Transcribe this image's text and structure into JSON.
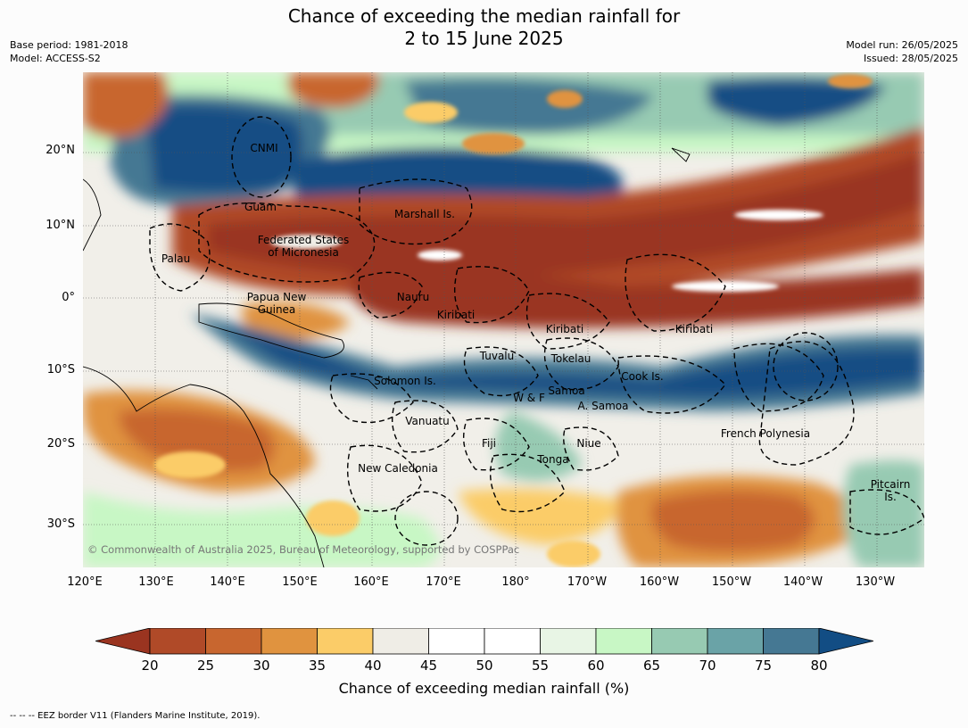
{
  "title": {
    "line1": "Chance of exceeding the median rainfall for",
    "line2": "2 to 15 June 2025"
  },
  "meta": {
    "base_period": "Base period: 1981-2018",
    "model": "Model: ACCESS-S2",
    "model_run": "Model run: 26/05/2025",
    "issued": "Issued: 28/05/2025"
  },
  "map": {
    "lat_ticks": [
      "20°N",
      "10°N",
      "0°",
      "10°S",
      "20°S",
      "30°S"
    ],
    "lon_ticks": [
      "120°E",
      "130°E",
      "140°E",
      "150°E",
      "160°E",
      "170°E",
      "180°",
      "170°W",
      "160°W",
      "150°W",
      "140°W",
      "130°W"
    ],
    "region_labels": [
      "CNMI",
      "Guam",
      "Marshall Is.",
      "Federated States",
      "of Micronesia",
      "Palau",
      "Papua New",
      "Guinea",
      "Nauru",
      "Kiribati",
      "Kiribati",
      "Kiribati",
      "Tuvalu",
      "Tokelau",
      "Cook Is.",
      "Solomon Is.",
      "Samoa",
      "W & F",
      "A. Samoa",
      "Vanuatu",
      "Fiji",
      "Niue",
      "Tonga",
      "French Polynesia",
      "New Caledonia",
      "Pitcairn",
      "Is."
    ],
    "copyright": "© Commonwealth of Australia 2025, Bureau of Meteorology, supported by COSPPac"
  },
  "colorbar": {
    "ticks": [
      "20",
      "25",
      "30",
      "35",
      "40",
      "45",
      "50",
      "55",
      "60",
      "65",
      "70",
      "75",
      "80"
    ],
    "colors": [
      "#9a3420",
      "#b04a28",
      "#c8662f",
      "#e0933f",
      "#fbcc68",
      "#efede6",
      "#ffffff",
      "#ffffff",
      "#e8f5e5",
      "#c8f7c5",
      "#97cab2",
      "#6aa3a7",
      "#457893",
      "#124d84"
    ],
    "label": "Chance of exceeding median rainfall (%)"
  },
  "footer": "--  --  -- EEZ border V11 (Flanders Marine Institute, 2019)."
}
